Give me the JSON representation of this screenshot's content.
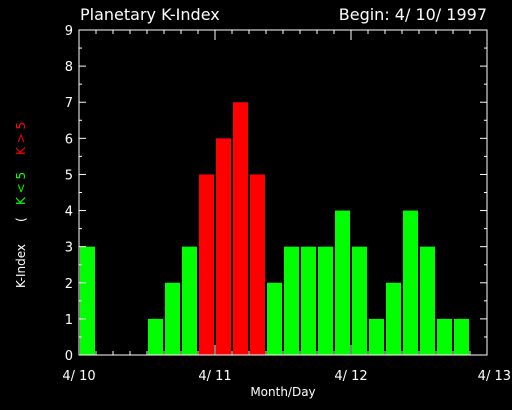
{
  "chart_data": {
    "type": "bar",
    "title": "Planetary K-Index",
    "subtitle": "Begin: 4/ 10/ 1997",
    "xlabel": "Month/Day",
    "ylabel": "K-Index",
    "legend": {
      "open": "(",
      "low": "K < 5",
      "high": "K > 5"
    },
    "x_ticks": [
      "4/ 10",
      "4/ 11",
      "4/ 12",
      "4/ 13"
    ],
    "y_ticks": [
      "0",
      "1",
      "2",
      "3",
      "4",
      "5",
      "6",
      "7",
      "8",
      "9"
    ],
    "ylim": [
      0,
      9
    ],
    "bars_per_day": 8,
    "num_days": 3,
    "values": [
      3,
      0,
      0,
      0,
      1,
      2,
      3,
      5,
      6,
      7,
      5,
      2,
      3,
      3,
      3,
      4,
      3,
      1,
      2,
      4,
      3,
      1,
      1,
      0
    ],
    "threshold": 5,
    "colors": {
      "low": "#00ff00",
      "high": "#ff0000",
      "axis": "#ffffff",
      "background": "#000000"
    }
  }
}
